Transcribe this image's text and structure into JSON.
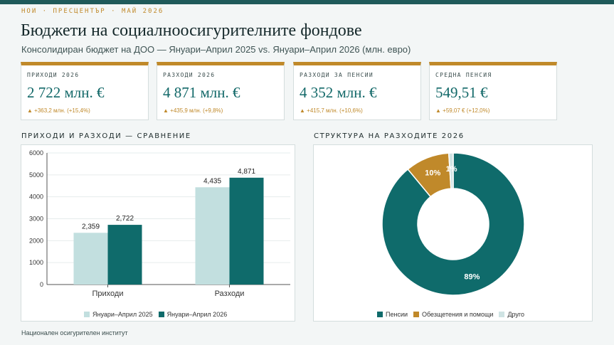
{
  "header": {
    "kicker": "НОИ · ПРЕСЦЕНТЪР · МАЙ 2026",
    "title": "Бюджети на социалноосигурителните фондове",
    "subtitle": "Консолидиран бюджет на ДОО — Януари–Април 2025 vs. Януари–Април 2026 (млн. евро)"
  },
  "kpis": [
    {
      "label": "ПРИХОДИ 2026",
      "value": "2 722 млн. €",
      "delta": "▲ +363,2 млн. (+15,4%)"
    },
    {
      "label": "РАЗХОДИ 2026",
      "value": "4 871 млн. €",
      "delta": "▲ +435,9 млн. (+9,8%)"
    },
    {
      "label": "РАЗХОДИ ЗА ПЕНСИИ",
      "value": "4 352 млн. €",
      "delta": "▲ +415,7 млн. (+10,6%)"
    },
    {
      "label": "СРЕДНА ПЕНСИЯ",
      "value": "549,51 €",
      "delta": "▲ +59,07 € (+12,0%)"
    }
  ],
  "sections": {
    "bar_title": "ПРИХОДИ И РАЗХОДИ — СРАВНЕНИЕ",
    "pie_title": "СТРУКТУРА НА РАЗХОДИТЕ 2026"
  },
  "footer": "Национален осигурителен институт",
  "colors": {
    "teal": "#0f6b6b",
    "light_teal": "#c2dfdf",
    "gold": "#c0892a",
    "other": "#cfe3e3"
  },
  "chart_data": [
    {
      "type": "bar",
      "categories": [
        "Приходи",
        "Разходи"
      ],
      "series": [
        {
          "name": "Януари–Април 2025",
          "values": [
            2359,
            4435
          ],
          "labels": [
            "2,359",
            "4,435"
          ],
          "color": "#c2dfdf"
        },
        {
          "name": "Януари–Април 2026",
          "values": [
            2722,
            4871
          ],
          "labels": [
            "2,722",
            "4,871"
          ],
          "color": "#0f6b6b"
        }
      ],
      "ylim": [
        0,
        6000
      ],
      "yticks": [
        0,
        1000,
        2000,
        3000,
        4000,
        5000,
        6000
      ],
      "grid": true,
      "legend": "bottom"
    },
    {
      "type": "pie",
      "donut": true,
      "slices": [
        {
          "name": "Пенсии",
          "value": 89,
          "label": "89%",
          "color": "#0f6b6b"
        },
        {
          "name": "Обезщетения и помощи",
          "value": 10,
          "label": "10%",
          "color": "#c0892a"
        },
        {
          "name": "Друго",
          "value": 1,
          "label": "1%",
          "color": "#cfe3e3"
        }
      ],
      "legend": "bottom"
    }
  ]
}
